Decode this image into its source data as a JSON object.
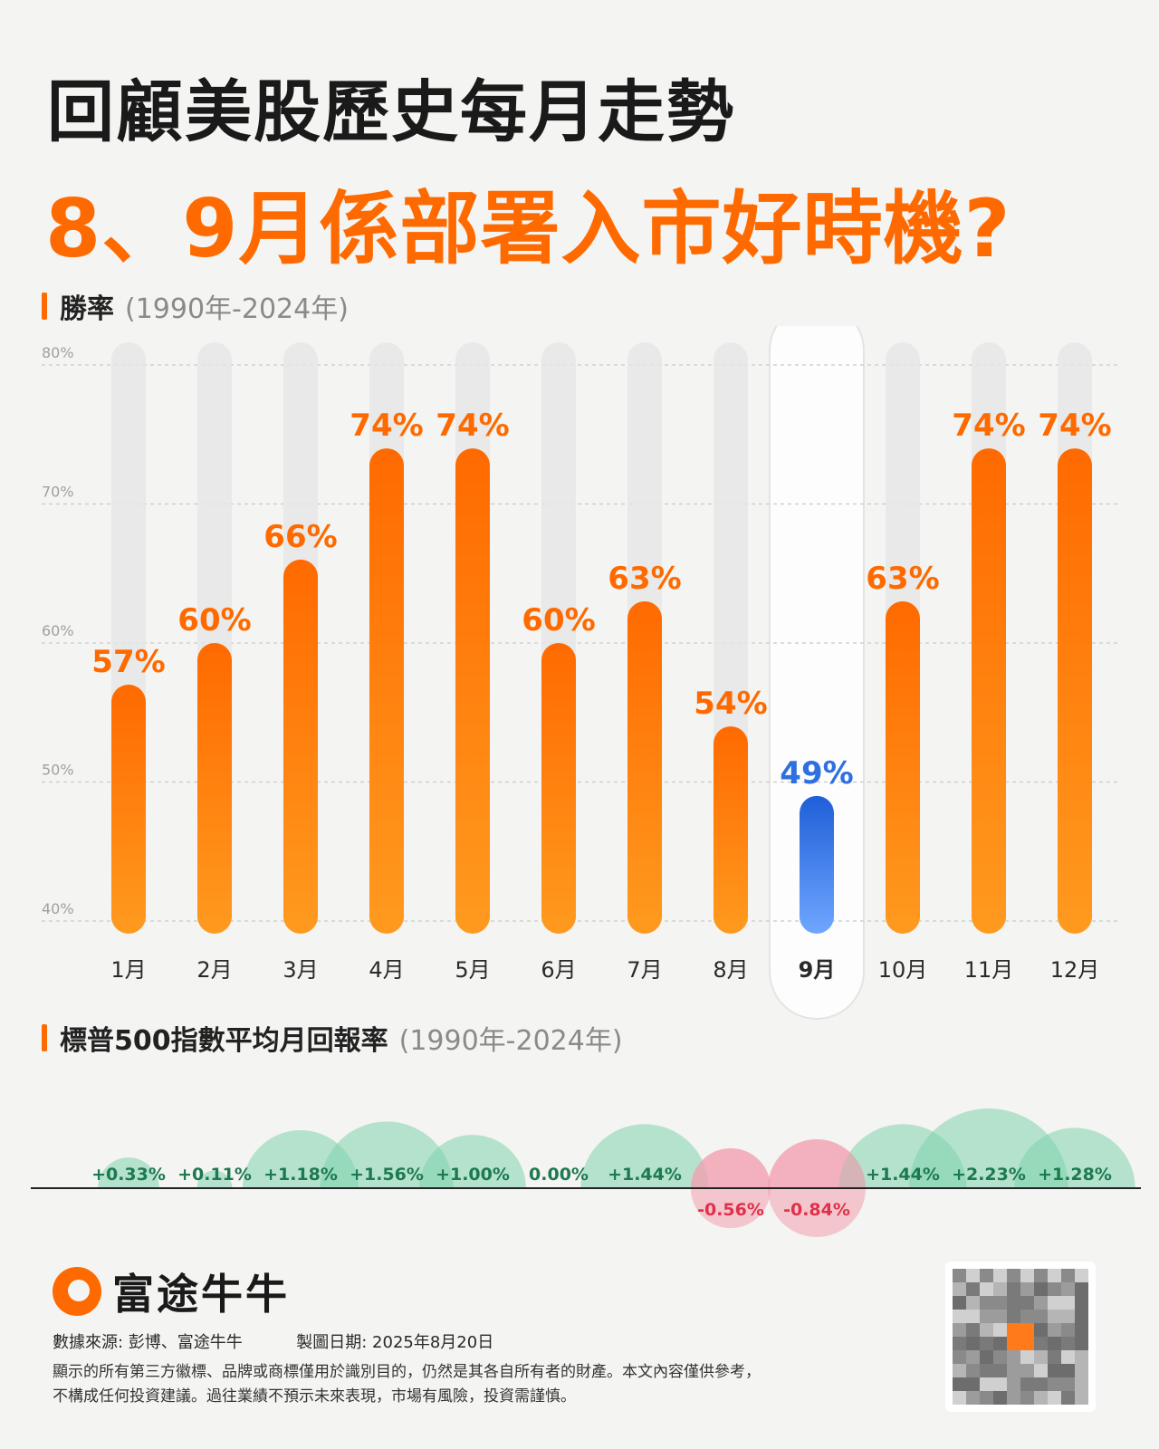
{
  "header": {
    "title": "回顧美股歷史每月走勢",
    "subtitle": "8、9月係部署入市好時機?"
  },
  "section1": {
    "label": "勝率",
    "range": "(1990年-2024年)"
  },
  "section2": {
    "label": "標普500指數平均月回報率",
    "range": "(1990年-2024年)"
  },
  "colors": {
    "accent": "#ff6a00",
    "highlight": "#2f6fe0",
    "positive": "#7fd3ad",
    "negative": "#f2a0b0",
    "negative_text": "#e0304a",
    "positive_text": "#1c7a4e"
  },
  "chart_data": [
    {
      "type": "bar",
      "categories": [
        "1月",
        "2月",
        "3月",
        "4月",
        "5月",
        "6月",
        "7月",
        "8月",
        "9月",
        "10月",
        "11月",
        "12月"
      ],
      "values": [
        57,
        60,
        66,
        74,
        74,
        60,
        63,
        54,
        49,
        63,
        74,
        74
      ],
      "value_labels": [
        "57%",
        "60%",
        "66%",
        "74%",
        "74%",
        "60%",
        "63%",
        "54%",
        "49%",
        "63%",
        "74%",
        "74%"
      ],
      "y_ticks": [
        "40%",
        "50%",
        "60%",
        "70%",
        "80%"
      ],
      "ylim": [
        40,
        80
      ],
      "highlight_category": "9月",
      "grid": true
    },
    {
      "type": "bubble",
      "categories": [
        "1月",
        "2月",
        "3月",
        "4月",
        "5月",
        "6月",
        "7月",
        "8月",
        "9月",
        "10月",
        "11月",
        "12月"
      ],
      "values": [
        0.33,
        0.11,
        1.18,
        1.56,
        1.0,
        0.0,
        1.44,
        -0.56,
        -0.84,
        1.44,
        2.23,
        1.28
      ],
      "value_labels": [
        "+0.33%",
        "+0.11%",
        "+1.18%",
        "+1.56%",
        "+1.00%",
        "0.00%",
        "+1.44%",
        "-0.56%",
        "-0.84%",
        "+1.44%",
        "+2.23%",
        "+1.28%"
      ]
    }
  ],
  "footer": {
    "brand": "富途牛牛",
    "source": "數據來源: 彭博、富途牛牛",
    "date": "製圖日期: 2025年8月20日",
    "disclaimer1": "顯示的所有第三方徽標、品牌或商標僅用於識別目的，仍然是其各自所有者的財產。本文內容僅供參考，",
    "disclaimer2": "不構成任何投資建議。過往業績不預示未來表現，市場有風險，投資需謹慎。"
  }
}
